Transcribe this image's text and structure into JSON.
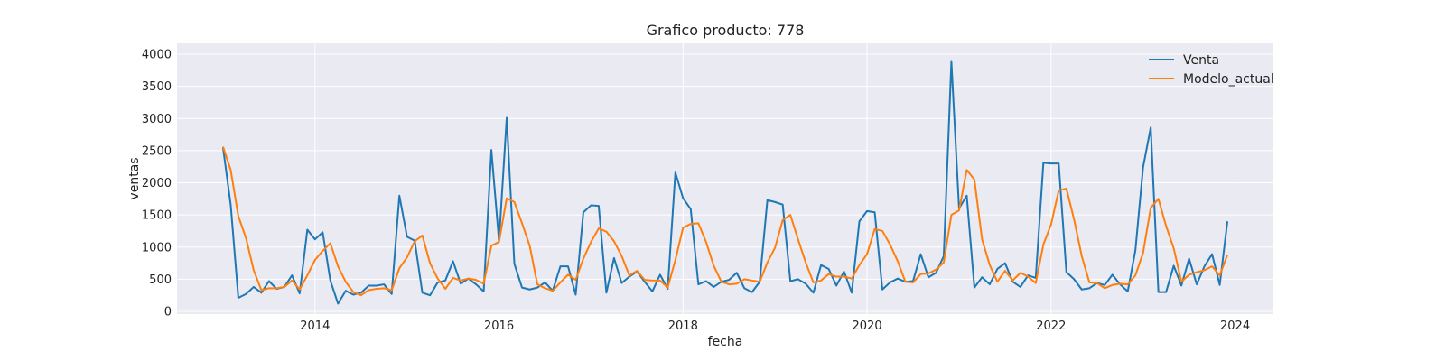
{
  "chart_data": {
    "type": "line",
    "title": "Grafico producto: 778",
    "xlabel": "fecha",
    "ylabel": "ventas",
    "ylim": [
      0,
      4000
    ],
    "yticks": [
      "0",
      "500",
      "1000",
      "1500",
      "2000",
      "2500",
      "3000",
      "3500",
      "4000"
    ],
    "xticks": [
      "2014",
      "2016",
      "2018",
      "2020",
      "2022",
      "2024"
    ],
    "xlim": [
      "2012-07",
      "2024-06"
    ],
    "grid": true,
    "legend_position": "top-right",
    "start": "2013-01",
    "frequency": "monthly",
    "series": [
      {
        "name": "Venta",
        "color": "#1f77b4",
        "values": [
          2550,
          1660,
          210,
          270,
          380,
          290,
          470,
          350,
          380,
          560,
          280,
          1270,
          1120,
          1230,
          480,
          120,
          320,
          260,
          290,
          400,
          400,
          420,
          270,
          1800,
          1160,
          1100,
          290,
          250,
          450,
          480,
          780,
          430,
          510,
          420,
          310,
          2510,
          1090,
          3010,
          740,
          370,
          340,
          370,
          450,
          320,
          700,
          700,
          260,
          1540,
          1650,
          1640,
          290,
          830,
          440,
          540,
          620,
          460,
          310,
          570,
          350,
          2160,
          1760,
          1590,
          420,
          470,
          380,
          460,
          490,
          600,
          360,
          300,
          460,
          1730,
          1700,
          1660,
          470,
          500,
          430,
          290,
          720,
          660,
          400,
          620,
          290,
          1400,
          1560,
          1540,
          340,
          450,
          510,
          460,
          470,
          890,
          530,
          600,
          860,
          3880,
          1600,
          1800,
          370,
          530,
          420,
          660,
          750,
          460,
          380,
          560,
          520,
          2310,
          2300,
          2300,
          610,
          500,
          340,
          360,
          440,
          410,
          570,
          420,
          310,
          950,
          2240,
          2860,
          300,
          300,
          710,
          400,
          820,
          420,
          700,
          890,
          410,
          1400
        ]
      },
      {
        "name": "Modelo_actual",
        "color": "#ff7f0e",
        "values": [
          2560,
          2200,
          1480,
          1140,
          640,
          330,
          360,
          360,
          380,
          480,
          340,
          560,
          800,
          940,
          1060,
          700,
          460,
          300,
          250,
          330,
          350,
          360,
          330,
          670,
          840,
          1090,
          1180,
          750,
          510,
          350,
          520,
          480,
          510,
          490,
          430,
          1020,
          1080,
          1760,
          1700,
          1370,
          1020,
          420,
          360,
          320,
          450,
          570,
          490,
          820,
          1080,
          1290,
          1240,
          1090,
          860,
          560,
          630,
          490,
          480,
          480,
          370,
          800,
          1300,
          1360,
          1370,
          1080,
          710,
          460,
          420,
          430,
          500,
          480,
          460,
          760,
          990,
          1420,
          1500,
          1120,
          760,
          450,
          480,
          580,
          540,
          540,
          510,
          720,
          890,
          1280,
          1250,
          1040,
          780,
          460,
          450,
          580,
          590,
          650,
          760,
          1500,
          1570,
          2200,
          2050,
          1120,
          720,
          460,
          630,
          480,
          600,
          540,
          440,
          1040,
          1350,
          1880,
          1910,
          1430,
          860,
          450,
          440,
          360,
          410,
          430,
          420,
          560,
          910,
          1610,
          1750,
          1330,
          980,
          460,
          570,
          610,
          640,
          700,
          560,
          880
        ]
      }
    ]
  }
}
